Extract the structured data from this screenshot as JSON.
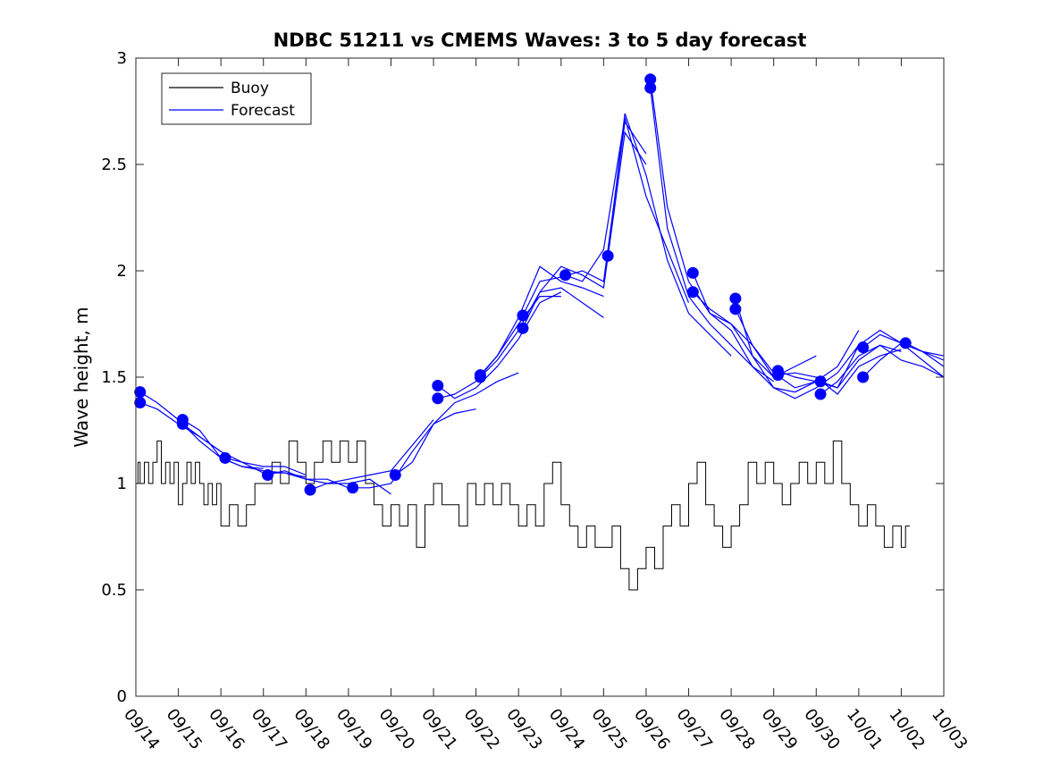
{
  "chart_data": {
    "type": "line",
    "title": "NDBC 51211 vs CMEMS Waves: 3 to 5 day forecast",
    "xlabel": "",
    "ylabel": "Wave height, m",
    "xlim": [
      0,
      19
    ],
    "ylim": [
      0,
      3
    ],
    "x_tick_labels": [
      "09/14",
      "09/15",
      "09/16",
      "09/17",
      "09/18",
      "09/19",
      "09/20",
      "09/21",
      "09/22",
      "09/23",
      "09/24",
      "09/25",
      "09/26",
      "09/27",
      "09/28",
      "09/29",
      "09/30",
      "10/01",
      "10/02",
      "10/03"
    ],
    "y_ticks": [
      0,
      0.5,
      1,
      1.5,
      2,
      2.5,
      3
    ],
    "y_tick_labels": [
      "0",
      "0.5",
      "1",
      "1.5",
      "2",
      "2.5",
      "3"
    ],
    "legend": {
      "position": "top-left",
      "entries": [
        {
          "name": "Buoy",
          "color": "#000000"
        },
        {
          "name": "Forecast",
          "color": "#0000ff"
        }
      ]
    },
    "colors": {
      "buoy": "#000000",
      "forecast": "#0000ff"
    },
    "buoy": {
      "x": [
        0.0,
        0.05,
        0.1,
        0.2,
        0.3,
        0.4,
        0.5,
        0.6,
        0.7,
        0.8,
        0.9,
        1.0,
        1.1,
        1.2,
        1.3,
        1.4,
        1.5,
        1.6,
        1.7,
        1.8,
        1.9,
        2.0,
        2.2,
        2.4,
        2.6,
        2.8,
        3.0,
        3.2,
        3.4,
        3.6,
        3.8,
        4.0,
        4.2,
        4.4,
        4.6,
        4.8,
        5.0,
        5.2,
        5.4,
        5.6,
        5.8,
        6.0,
        6.2,
        6.4,
        6.6,
        6.8,
        7.0,
        7.2,
        7.4,
        7.6,
        7.8,
        8.0,
        8.2,
        8.4,
        8.6,
        8.8,
        9.0,
        9.2,
        9.4,
        9.6,
        9.8,
        10.0,
        10.2,
        10.4,
        10.6,
        10.8,
        11.0,
        11.2,
        11.4,
        11.6,
        11.8,
        12.0,
        12.2,
        12.4,
        12.6,
        12.8,
        13.0,
        13.2,
        13.4,
        13.6,
        13.8,
        14.0,
        14.2,
        14.4,
        14.6,
        14.8,
        15.0,
        15.2,
        15.4,
        15.6,
        15.8,
        16.0,
        16.2,
        16.4,
        16.6,
        16.8,
        17.0,
        17.2,
        17.4,
        17.6,
        17.8,
        18.0,
        18.1,
        18.2
      ],
      "y": [
        1.0,
        1.1,
        1.0,
        1.1,
        1.0,
        1.1,
        1.2,
        1.0,
        1.1,
        1.0,
        1.1,
        0.9,
        1.0,
        1.1,
        1.0,
        1.1,
        1.0,
        0.9,
        1.0,
        0.9,
        1.0,
        0.8,
        0.9,
        0.8,
        0.9,
        1.0,
        1.0,
        1.1,
        1.0,
        1.2,
        1.1,
        1.0,
        1.1,
        1.2,
        1.1,
        1.2,
        1.1,
        1.2,
        1.0,
        0.9,
        0.8,
        0.9,
        0.8,
        0.9,
        0.7,
        0.9,
        1.0,
        0.9,
        0.9,
        0.8,
        1.0,
        0.9,
        1.0,
        0.9,
        1.0,
        0.9,
        0.8,
        0.9,
        0.8,
        1.0,
        1.1,
        0.9,
        0.8,
        0.7,
        0.8,
        0.7,
        0.7,
        0.8,
        0.6,
        0.5,
        0.6,
        0.7,
        0.6,
        0.8,
        0.9,
        0.8,
        1.0,
        1.1,
        0.9,
        0.8,
        0.7,
        0.8,
        0.9,
        1.1,
        1.0,
        1.1,
        1.0,
        0.9,
        1.0,
        1.1,
        1.0,
        1.1,
        1.0,
        1.2,
        1.0,
        0.9,
        0.8,
        0.9,
        0.8,
        0.7,
        0.8,
        0.7,
        0.8,
        0.8
      ]
    },
    "forecast_runs": [
      {
        "x": [
          0.1,
          0.5,
          1.0,
          1.5,
          2.0,
          2.5,
          3.0
        ],
        "y": [
          1.43,
          1.38,
          1.3,
          1.2,
          1.12,
          1.08,
          1.07
        ]
      },
      {
        "x": [
          0.1,
          0.5,
          1.0,
          1.5,
          2.0
        ],
        "y": [
          1.38,
          1.35,
          1.28,
          1.22,
          1.15
        ]
      },
      {
        "x": [
          1.1,
          1.5,
          2.0,
          2.5,
          3.0,
          3.5,
          4.0
        ],
        "y": [
          1.3,
          1.25,
          1.12,
          1.08,
          1.06,
          1.05,
          1.03
        ]
      },
      {
        "x": [
          1.1,
          1.5,
          2.0,
          2.5,
          3.0,
          3.5,
          4.0
        ],
        "y": [
          1.28,
          1.22,
          1.15,
          1.1,
          1.08,
          1.08,
          1.04
        ]
      },
      {
        "x": [
          2.1,
          2.5,
          3.0,
          3.5,
          4.0,
          4.5,
          5.0
        ],
        "y": [
          1.12,
          1.1,
          1.05,
          1.05,
          1.02,
          1.02,
          0.98
        ]
      },
      {
        "x": [
          3.1,
          3.5,
          4.0,
          4.5,
          5.0,
          5.5,
          6.0
        ],
        "y": [
          1.04,
          1.06,
          1.02,
          1.0,
          1.0,
          1.02,
          0.95
        ]
      },
      {
        "x": [
          4.1,
          4.5,
          5.0,
          5.5,
          6.0,
          6.5,
          7.0
        ],
        "y": [
          0.97,
          1.0,
          1.02,
          1.04,
          1.06,
          1.18,
          1.3
        ]
      },
      {
        "x": [
          5.1,
          5.5,
          6.0,
          6.5,
          7.0,
          7.5,
          8.0
        ],
        "y": [
          0.98,
          0.98,
          1.0,
          1.15,
          1.28,
          1.33,
          1.35
        ]
      },
      {
        "x": [
          6.1,
          6.5,
          7.0,
          7.5,
          8.0,
          8.5,
          9.0
        ],
        "y": [
          1.04,
          1.1,
          1.28,
          1.38,
          1.42,
          1.48,
          1.52
        ]
      },
      {
        "x": [
          7.1,
          7.5,
          8.0,
          8.5,
          9.0,
          9.5,
          10.0
        ],
        "y": [
          1.46,
          1.4,
          1.45,
          1.55,
          1.68,
          1.85,
          1.9
        ]
      },
      {
        "x": [
          7.1,
          7.5,
          8.0,
          8.5,
          9.0,
          9.5,
          10.0
        ],
        "y": [
          1.4,
          1.42,
          1.48,
          1.6,
          1.75,
          1.88,
          1.88
        ]
      },
      {
        "x": [
          8.1,
          8.5,
          9.0,
          9.5,
          10.0,
          10.5,
          11.0
        ],
        "y": [
          1.51,
          1.6,
          1.78,
          2.02,
          1.95,
          1.92,
          1.88
        ]
      },
      {
        "x": [
          8.1,
          8.5,
          9.0,
          9.5,
          10.0,
          10.5,
          11.0
        ],
        "y": [
          1.5,
          1.58,
          1.72,
          1.9,
          1.92,
          1.85,
          1.78
        ]
      },
      {
        "x": [
          9.1,
          9.5,
          10.0,
          10.5,
          11.0,
          11.5,
          12.0
        ],
        "y": [
          1.79,
          1.95,
          1.97,
          2.0,
          1.95,
          2.7,
          2.55
        ]
      },
      {
        "x": [
          9.1,
          9.5,
          10.0,
          10.5,
          11.0,
          11.5,
          12.0
        ],
        "y": [
          1.73,
          1.9,
          2.02,
          1.98,
          1.92,
          2.65,
          2.5
        ]
      },
      {
        "x": [
          10.1,
          10.5,
          11.0,
          11.5,
          12.0,
          12.5,
          13.0
        ],
        "y": [
          1.98,
          1.95,
          2.1,
          2.72,
          2.35,
          2.1,
          1.85
        ]
      },
      {
        "x": [
          11.1,
          11.5,
          12.0,
          12.5,
          13.0,
          13.5,
          14.0
        ],
        "y": [
          2.07,
          2.74,
          2.45,
          2.05,
          1.8,
          1.7,
          1.6
        ]
      },
      {
        "x": [
          12.1,
          12.5,
          13.0,
          13.5,
          14.0,
          14.5,
          15.0
        ],
        "y": [
          2.9,
          2.3,
          1.95,
          1.8,
          1.75,
          1.6,
          1.5
        ]
      },
      {
        "x": [
          12.1,
          12.5,
          13.0,
          13.5,
          14.0,
          14.5,
          15.0
        ],
        "y": [
          2.86,
          2.2,
          1.88,
          1.75,
          1.65,
          1.55,
          1.48
        ]
      },
      {
        "x": [
          13.1,
          13.5,
          14.0,
          14.5,
          15.0,
          15.5,
          16.0
        ],
        "y": [
          1.99,
          1.8,
          1.72,
          1.55,
          1.45,
          1.43,
          1.48
        ]
      },
      {
        "x": [
          13.1,
          13.5,
          14.0,
          14.5,
          15.0,
          15.5,
          16.0
        ],
        "y": [
          1.9,
          1.82,
          1.75,
          1.65,
          1.5,
          1.55,
          1.6
        ]
      },
      {
        "x": [
          14.1,
          14.5,
          15.0,
          15.5,
          16.0,
          16.5,
          17.0
        ],
        "y": [
          1.87,
          1.6,
          1.45,
          1.4,
          1.45,
          1.52,
          1.65
        ]
      },
      {
        "x": [
          14.1,
          14.5,
          15.0,
          15.5,
          16.0,
          16.5,
          17.0
        ],
        "y": [
          1.82,
          1.65,
          1.52,
          1.45,
          1.48,
          1.55,
          1.72
        ]
      },
      {
        "x": [
          15.1,
          15.5,
          16.0,
          16.5,
          17.0,
          17.5,
          18.0
        ],
        "y": [
          1.53,
          1.5,
          1.48,
          1.45,
          1.58,
          1.65,
          1.62
        ]
      },
      {
        "x": [
          15.1,
          15.5,
          16.0,
          16.5,
          17.0,
          17.5,
          18.0
        ],
        "y": [
          1.51,
          1.52,
          1.5,
          1.42,
          1.55,
          1.6,
          1.63
        ]
      },
      {
        "x": [
          16.1,
          16.5,
          17.0,
          17.5,
          18.0,
          18.5,
          19.0
        ],
        "y": [
          1.48,
          1.45,
          1.65,
          1.72,
          1.66,
          1.62,
          1.58
        ]
      },
      {
        "x": [
          16.1,
          16.5,
          17.0,
          17.5,
          18.0,
          18.5,
          19.0
        ],
        "y": [
          1.42,
          1.48,
          1.6,
          1.65,
          1.58,
          1.55,
          1.5
        ]
      },
      {
        "x": [
          17.1,
          17.5,
          18.0,
          18.5,
          19.0
        ],
        "y": [
          1.64,
          1.7,
          1.66,
          1.58,
          1.5
        ]
      },
      {
        "x": [
          17.1,
          17.5,
          18.0,
          18.5,
          19.0
        ],
        "y": [
          1.5,
          1.58,
          1.66,
          1.62,
          1.6
        ]
      },
      {
        "x": [
          18.1,
          18.5,
          19.0
        ],
        "y": [
          1.66,
          1.62,
          1.55
        ]
      }
    ],
    "forecast_points": {
      "x": [
        0.1,
        0.1,
        1.1,
        1.1,
        2.1,
        3.1,
        4.1,
        5.1,
        6.1,
        7.1,
        7.1,
        8.1,
        8.1,
        9.1,
        9.1,
        10.1,
        11.1,
        12.1,
        12.1,
        13.1,
        13.1,
        14.1,
        14.1,
        15.1,
        15.1,
        16.1,
        16.1,
        17.1,
        17.1,
        18.1
      ],
      "y": [
        1.43,
        1.38,
        1.3,
        1.28,
        1.12,
        1.04,
        0.97,
        0.98,
        1.04,
        1.46,
        1.4,
        1.51,
        1.5,
        1.79,
        1.73,
        1.98,
        2.07,
        2.9,
        2.86,
        1.99,
        1.9,
        1.87,
        1.82,
        1.53,
        1.51,
        1.48,
        1.42,
        1.64,
        1.5,
        1.66
      ]
    }
  }
}
